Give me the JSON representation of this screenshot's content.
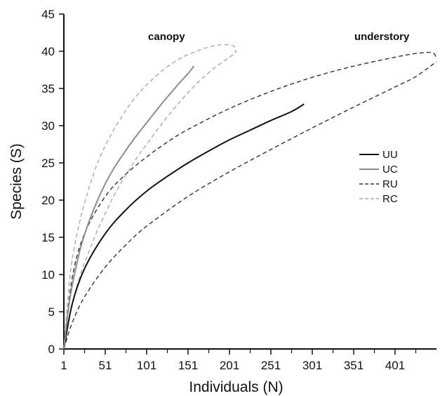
{
  "chart_data": {
    "type": "line",
    "title": "",
    "xlabel": "Individuals (N)",
    "ylabel": "Species (S)",
    "xlim": [
      1,
      451
    ],
    "ylim": [
      0,
      45
    ],
    "x_ticks": [
      1,
      51,
      101,
      151,
      201,
      251,
      301,
      351,
      401
    ],
    "y_ticks": [
      0,
      5,
      10,
      15,
      20,
      25,
      30,
      35,
      40,
      45
    ],
    "grid": false,
    "legend_position": "right",
    "annotations": [
      {
        "text": "canopy",
        "x": 125,
        "y": 41.5
      },
      {
        "text": "understory",
        "x": 385,
        "y": 41.5
      }
    ],
    "series": [
      {
        "name": "UU",
        "style": "solid",
        "color": "#111111",
        "x": [
          1,
          11,
          26,
          51,
          76,
          101,
          126,
          151,
          176,
          201,
          226,
          251,
          276,
          291
        ],
        "y": [
          0,
          6,
          10.8,
          15.5,
          18.7,
          21.2,
          23.2,
          25,
          26.6,
          28.1,
          29.4,
          30.7,
          31.9,
          32.9
        ]
      },
      {
        "name": "UC",
        "style": "solid",
        "color": "#8c8c8c",
        "x": [
          1,
          6,
          11,
          21,
          31,
          41,
          51,
          61,
          71,
          81,
          91,
          101,
          111,
          121,
          131,
          141,
          151,
          158
        ],
        "y": [
          0,
          5,
          8.5,
          13.5,
          17,
          19.8,
          22.2,
          24.2,
          25.9,
          27.5,
          29,
          30.4,
          31.8,
          33.2,
          34.5,
          35.8,
          37,
          38
        ]
      },
      {
        "name": "RU",
        "style": "dashed",
        "color": "#333333",
        "upper": {
          "x": [
            1,
            11,
            26,
            51,
            76,
            101,
            126,
            151,
            201,
            251,
            301,
            351,
            401,
            426,
            446,
            451
          ],
          "y": [
            0,
            9.5,
            15.5,
            20.5,
            23.5,
            25.8,
            27.8,
            29.5,
            32.3,
            34.6,
            36.5,
            38,
            39.2,
            39.7,
            39.8,
            39
          ]
        },
        "lower": {
          "x": [
            1,
            11,
            26,
            51,
            76,
            101,
            151,
            201,
            251,
            301,
            351,
            401,
            426,
            451
          ],
          "y": [
            0,
            3.5,
            7,
            11,
            14,
            16.5,
            20.5,
            23.8,
            26.8,
            29.7,
            32.5,
            35.2,
            36.6,
            38.6
          ]
        }
      },
      {
        "name": "RC",
        "style": "dashed",
        "color": "#aaaaaa",
        "upper": {
          "x": [
            1,
            6,
            11,
            21,
            31,
            41,
            51,
            61,
            71,
            81,
            91,
            101,
            121,
            141,
            161,
            181,
            196,
            206,
            209
          ],
          "y": [
            0,
            7,
            12,
            17.5,
            21.5,
            24.8,
            27.3,
            29.4,
            31.2,
            32.9,
            34.3,
            35.5,
            37.5,
            39,
            40,
            40.7,
            40.9,
            40.7,
            40
          ]
        },
        "lower": {
          "x": [
            1,
            6,
            11,
            21,
            31,
            41,
            51,
            61,
            71,
            81,
            91,
            101,
            121,
            141,
            161,
            181,
            196,
            206,
            209
          ],
          "y": [
            0,
            3,
            6,
            10,
            13,
            15.8,
            18.2,
            20.5,
            22.5,
            24.3,
            26,
            27.5,
            30.5,
            33.2,
            35.6,
            37.6,
            38.8,
            39.6,
            40
          ]
        }
      }
    ]
  }
}
